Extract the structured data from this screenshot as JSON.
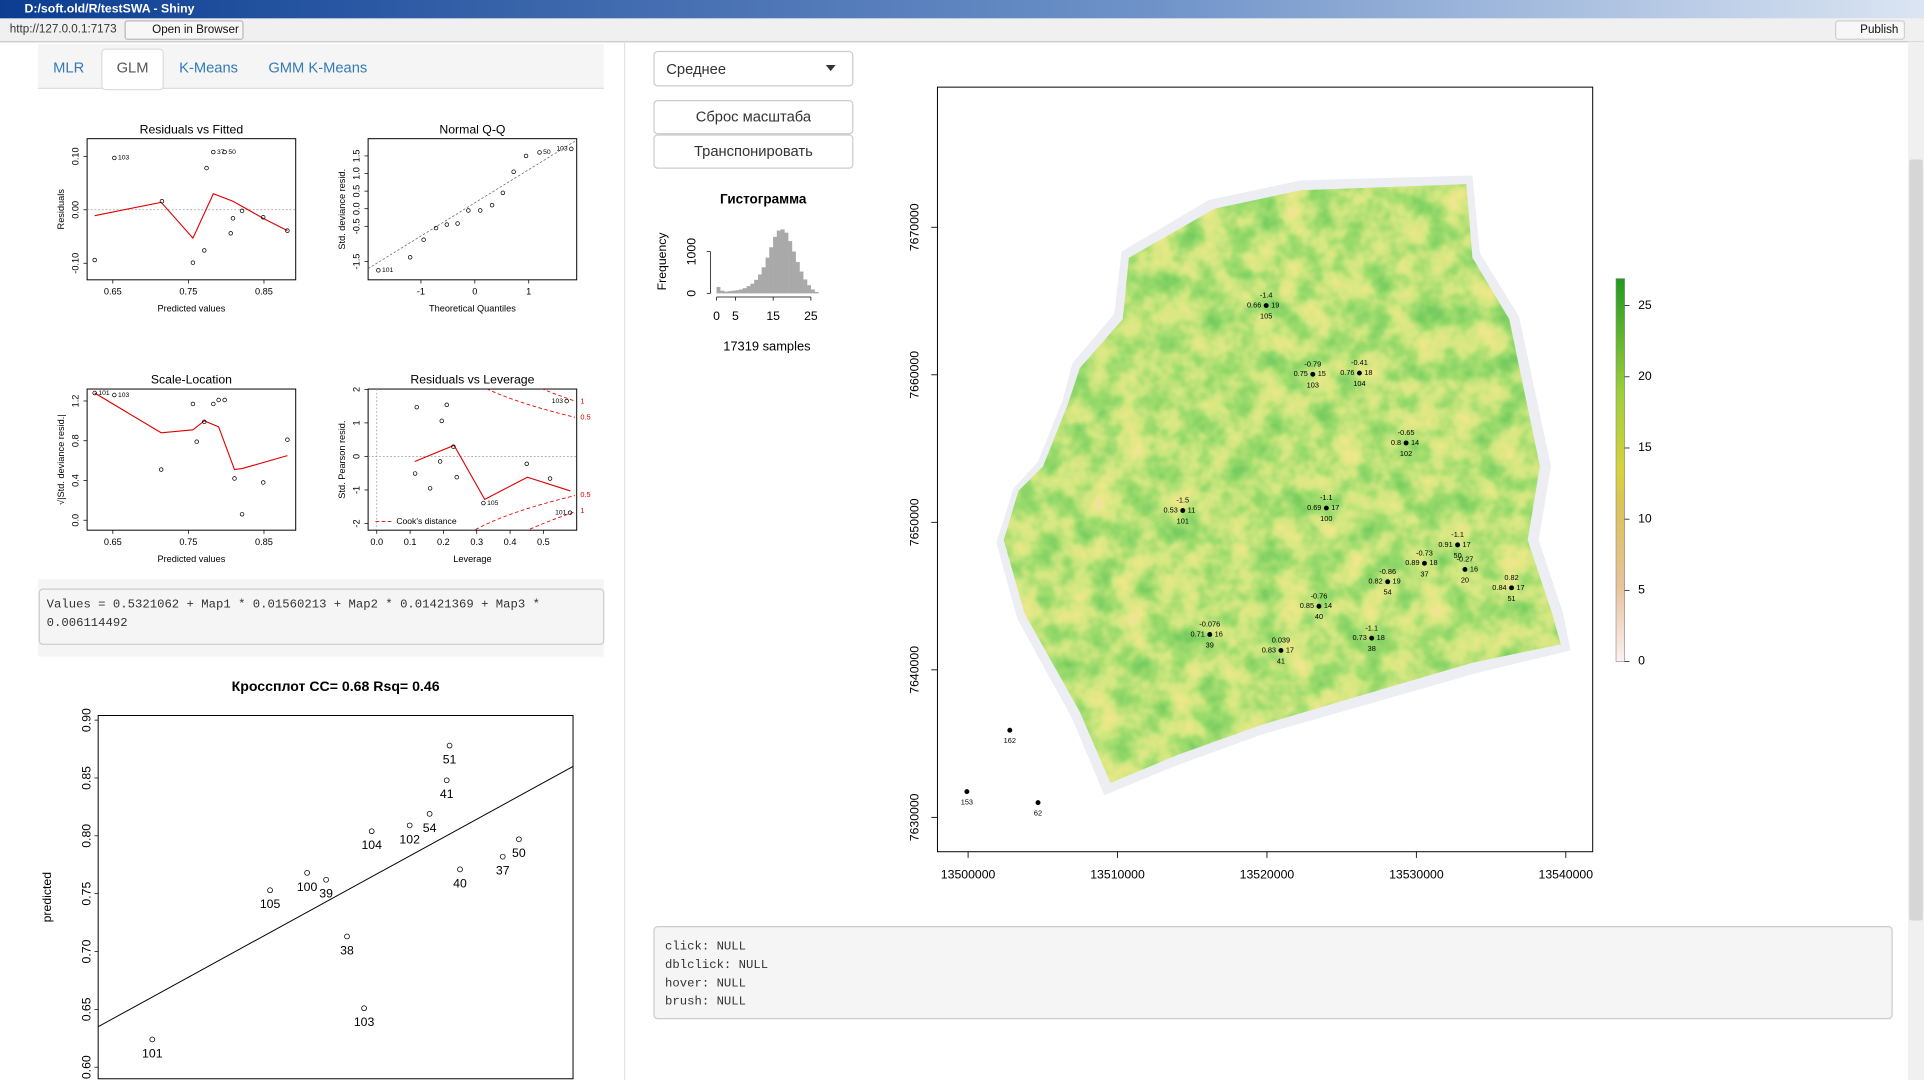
{
  "window": {
    "title": "D:/soft.old/R/testSWA - Shiny",
    "url": "http://127.0.0.1:7173",
    "open_in_browser": "Open in Browser",
    "publish": "Publish"
  },
  "tabs": {
    "items": [
      "MLR",
      "GLM",
      "K-Means",
      "GMM K-Means"
    ],
    "active": 1
  },
  "diagnostics": [
    {
      "title": "Residuals vs Fitted",
      "xlabel": "Predicted values",
      "ylabel": "Residuals",
      "xlim": [
        0.616,
        0.892
      ],
      "ylim": [
        -0.131,
        0.133
      ],
      "xticks": [
        0.65,
        0.75,
        0.85
      ],
      "yticks": [
        {
          "value": -0.1,
          "label": "-0.10"
        },
        {
          "value": 0,
          "label": "0.00"
        },
        {
          "value": 0.1,
          "label": "0.10"
        }
      ],
      "zero_line": true,
      "points": [
        {
          "x": 0.626,
          "y": -0.094
        },
        {
          "x": 0.652,
          "y": 0.097,
          "label": "103"
        },
        {
          "x": 0.715,
          "y": 0.016
        },
        {
          "x": 0.756,
          "y": -0.099
        },
        {
          "x": 0.771,
          "y": -0.076
        },
        {
          "x": 0.774,
          "y": 0.078
        },
        {
          "x": 0.783,
          "y": 0.108,
          "label": "37"
        },
        {
          "x": 0.798,
          "y": 0.108,
          "label": "50"
        },
        {
          "x": 0.806,
          "y": -0.044
        },
        {
          "x": 0.809,
          "y": -0.016
        },
        {
          "x": 0.821,
          "y": -0.002
        },
        {
          "x": 0.849,
          "y": -0.014
        },
        {
          "x": 0.881,
          "y": -0.039
        }
      ],
      "smooth": {
        "x": [
          0.626,
          0.714,
          0.756,
          0.783,
          0.809,
          0.849,
          0.881
        ],
        "y": [
          -0.011,
          0.014,
          -0.053,
          0.03,
          0.016,
          -0.016,
          -0.039
        ]
      }
    },
    {
      "title": "Normal Q-Q",
      "xlabel": "Theoretical Quantiles",
      "ylabel": "Std. deviance resid.",
      "xlim": [
        -1.98,
        1.89
      ],
      "ylim": [
        -2.02,
        1.99
      ],
      "xticks": [
        -1,
        0,
        1
      ],
      "yticks": [
        -1.5,
        -0.5,
        {
          "value": 0,
          "label": "0.0"
        },
        0.5,
        {
          "value": 1,
          "label": "1.0"
        },
        1.5
      ],
      "points": [
        {
          "x": -1.79,
          "y": -1.75,
          "label": "101"
        },
        {
          "x": -1.2,
          "y": -1.38
        },
        {
          "x": -0.95,
          "y": -0.88
        },
        {
          "x": -0.72,
          "y": -0.55
        },
        {
          "x": -0.52,
          "y": -0.45
        },
        {
          "x": -0.32,
          "y": -0.42
        },
        {
          "x": -0.12,
          "y": -0.05
        },
        {
          "x": 0.1,
          "y": -0.05
        },
        {
          "x": 0.32,
          "y": 0.1
        },
        {
          "x": 0.52,
          "y": 0.45
        },
        {
          "x": 0.72,
          "y": 1.05
        },
        {
          "x": 0.95,
          "y": 1.5
        },
        {
          "x": 1.2,
          "y": 1.6,
          "label": "50"
        },
        {
          "x": 1.79,
          "y": 1.7,
          "label": "103"
        }
      ],
      "ref_line": {
        "x": [
          -1.98,
          1.89
        ],
        "y": [
          -1.7,
          1.95
        ]
      }
    },
    {
      "title": "Scale-Location",
      "xlabel": "Predicted values",
      "ylabel": "√|Std. deviance resid.|",
      "xlim": [
        0.616,
        0.892
      ],
      "ylim": [
        -0.1,
        1.32
      ],
      "xticks": [
        0.65,
        0.75,
        0.85
      ],
      "yticks": [
        {
          "value": 0,
          "label": "0.0"
        },
        0.4,
        0.8,
        1.2
      ],
      "points": [
        {
          "x": 0.626,
          "y": 1.28,
          "label": "101"
        },
        {
          "x": 0.652,
          "y": 1.26,
          "label": "103"
        },
        {
          "x": 0.714,
          "y": 0.51
        },
        {
          "x": 0.756,
          "y": 1.17
        },
        {
          "x": 0.761,
          "y": 0.79
        },
        {
          "x": 0.771,
          "y": 0.99
        },
        {
          "x": 0.783,
          "y": 1.17
        },
        {
          "x": 0.79,
          "y": 1.21
        },
        {
          "x": 0.798,
          "y": 1.21
        },
        {
          "x": 0.811,
          "y": 0.42
        },
        {
          "x": 0.821,
          "y": 0.06
        },
        {
          "x": 0.849,
          "y": 0.38
        },
        {
          "x": 0.881,
          "y": 0.81
        }
      ],
      "smooth": {
        "x": [
          0.626,
          0.714,
          0.756,
          0.771,
          0.79,
          0.811,
          0.821,
          0.881
        ],
        "y": [
          1.28,
          0.88,
          0.91,
          1.0,
          0.94,
          0.51,
          0.52,
          0.65
        ]
      }
    },
    {
      "title": "Residuals vs Leverage",
      "xlabel": "Leverage",
      "ylabel": "Std. Pearson resid.",
      "xlim": [
        -0.026,
        0.6
      ],
      "ylim": [
        -2.2,
        2.01
      ],
      "xticks": [
        {
          "value": 0,
          "label": "0.0"
        },
        0.1,
        0.2,
        0.3,
        0.4,
        0.5
      ],
      "yticks": [
        -2,
        -1,
        0,
        1,
        2
      ],
      "zero_line": true,
      "points": [
        {
          "x": 0.12,
          "y": 1.47
        },
        {
          "x": 0.195,
          "y": 1.06
        },
        {
          "x": 0.21,
          "y": 1.54
        },
        {
          "x": 0.115,
          "y": -0.51
        },
        {
          "x": 0.16,
          "y": -0.95
        },
        {
          "x": 0.19,
          "y": -0.15
        },
        {
          "x": 0.23,
          "y": 0.29
        },
        {
          "x": 0.24,
          "y": -0.62
        },
        {
          "x": 0.32,
          "y": -1.39,
          "label": "105"
        },
        {
          "x": 0.45,
          "y": -0.22
        },
        {
          "x": 0.52,
          "y": -0.66
        },
        {
          "x": 0.58,
          "y": -1.68,
          "label": "101"
        },
        {
          "x": 0.57,
          "y": 1.65,
          "label": "103"
        }
      ],
      "smooth": {
        "x": [
          0.114,
          0.232,
          0.324,
          0.452,
          0.581
        ],
        "y": [
          -0.15,
          0.33,
          -1.28,
          -0.62,
          -1.03
        ]
      },
      "cook_levels": [
        {
          "value": 0.5,
          "label": "0.5"
        },
        {
          "value": 1,
          "label": "1"
        }
      ],
      "cook_legend": "Cook's distance"
    }
  ],
  "formula": "Values = 0.5321062 + Map1 * 0.01560213 + Map2 * 0.01421369 + Map3 * 0.006114492",
  "crossplot": {
    "title": "Кроссплот CC= 0.68 Rsq= 0.46",
    "ylabel": "predicted",
    "xlim": [
      0.5,
      1.0
    ],
    "ylim": [
      0.59,
      0.904
    ],
    "yticks": [
      {
        "value": 0.6,
        "label": "0.60"
      },
      0.65,
      {
        "value": 0.7,
        "label": "0.70"
      },
      0.75,
      {
        "value": 0.8,
        "label": "0.80"
      },
      0.85,
      {
        "value": 0.9,
        "label": "0.90"
      }
    ],
    "points": [
      {
        "x": 0.557,
        "y": 0.624,
        "label": "101"
      },
      {
        "x": 0.78,
        "y": 0.651,
        "label": "103"
      },
      {
        "x": 0.762,
        "y": 0.713,
        "label": "38"
      },
      {
        "x": 0.681,
        "y": 0.753,
        "label": "105"
      },
      {
        "x": 0.72,
        "y": 0.768,
        "label": "100"
      },
      {
        "x": 0.74,
        "y": 0.762,
        "label": "39"
      },
      {
        "x": 0.788,
        "y": 0.804,
        "label": "104"
      },
      {
        "x": 0.828,
        "y": 0.809,
        "label": "102"
      },
      {
        "x": 0.849,
        "y": 0.819,
        "label": "54"
      },
      {
        "x": 0.867,
        "y": 0.848,
        "label": "41"
      },
      {
        "x": 0.87,
        "y": 0.878,
        "label": "51"
      },
      {
        "x": 0.926,
        "y": 0.782,
        "label": "37"
      },
      {
        "x": 0.943,
        "y": 0.797,
        "label": "50"
      },
      {
        "x": 0.881,
        "y": 0.771,
        "label": "40"
      }
    ],
    "fit_line": {
      "x": [
        0.5,
        1.0
      ],
      "y": [
        0.635,
        0.86
      ]
    }
  },
  "controls": {
    "select": "Среднее",
    "reset_button": "Сброс масштаба",
    "transpose_button": "Транспонировать"
  },
  "histogram": {
    "title": "Гистограмма",
    "ylabel": "Frequency",
    "note": "17319 samples",
    "bins": [
      0,
      1,
      2,
      3,
      4,
      5,
      6,
      7,
      8,
      9,
      10,
      11,
      12,
      13,
      14,
      15,
      16,
      17,
      18,
      19,
      20,
      21,
      22,
      23,
      24,
      25,
      26,
      27
    ],
    "counts": [
      150,
      60,
      40,
      50,
      60,
      70,
      90,
      120,
      170,
      230,
      320,
      450,
      620,
      850,
      1100,
      1350,
      1500,
      1530,
      1450,
      1250,
      1000,
      750,
      520,
      330,
      190,
      90,
      30
    ],
    "color": "#a9a9a9",
    "xlim": [
      0,
      27
    ],
    "ylim": [
      0,
      1530
    ],
    "xticks": [
      0,
      5,
      15,
      25
    ],
    "yticks": [
      0,
      1000
    ]
  },
  "map": {
    "xlim": [
      13497950,
      13541800
    ],
    "ylim": [
      7627670,
      7679500
    ],
    "xticks": [
      13500000,
      13510000,
      13520000,
      13530000,
      13540000
    ],
    "yticks": [
      7630000,
      7640000,
      7650000,
      7660000,
      7670000
    ],
    "legend": {
      "lim": [
        0,
        26.9
      ],
      "ticks": [
        0,
        5,
        10,
        15,
        20,
        25
      ]
    },
    "points": [
      {
        "x": 13519950,
        "y": 7664694,
        "id": "105",
        "top": "-1.4",
        "left": "0.66",
        "right": "19"
      },
      {
        "x": 13523070,
        "y": 7660035,
        "id": "103",
        "top": "-0.79",
        "left": "0.75",
        "right": "15"
      },
      {
        "x": 13526190,
        "y": 7660118,
        "id": "104",
        "top": "-0.41",
        "left": "0.76",
        "right": "18"
      },
      {
        "x": 13529310,
        "y": 7655376,
        "id": "102",
        "top": "-0.65",
        "left": "0.8",
        "right": "14"
      },
      {
        "x": 13514368,
        "y": 7650800,
        "id": "101",
        "top": "-1.5",
        "left": "0.53",
        "right": "11"
      },
      {
        "x": 13523973,
        "y": 7650966,
        "id": "100",
        "top": "-1.1",
        "left": "0.69",
        "right": "17"
      },
      {
        "x": 13532758,
        "y": 7648470,
        "id": "50",
        "top": "-1.1",
        "left": "0.91",
        "right": "17"
      },
      {
        "x": 13530541,
        "y": 7647222,
        "id": "37",
        "top": "-0.73",
        "left": "0.89",
        "right": "18"
      },
      {
        "x": 13533250,
        "y": 7646806,
        "id": "20",
        "top": "-0.27",
        "right": "16"
      },
      {
        "x": 13528078,
        "y": 7645974,
        "id": "54",
        "top": "-0.86",
        "left": "0.82",
        "right": "19"
      },
      {
        "x": 13536370,
        "y": 7645558,
        "id": "51",
        "top": "0.82",
        "left": "0.84",
        "right": "17"
      },
      {
        "x": 13523481,
        "y": 7644310,
        "id": "40",
        "top": "-0.76",
        "left": "0.85",
        "right": "14"
      },
      {
        "x": 13516174,
        "y": 7642397,
        "id": "39",
        "top": "-0.076",
        "left": "0.71",
        "right": "16"
      },
      {
        "x": 13520936,
        "y": 7641315,
        "id": "41",
        "top": "0.039",
        "left": "0.83",
        "right": "17"
      },
      {
        "x": 13527011,
        "y": 7642147,
        "id": "38",
        "top": "-1.1",
        "left": "0.73",
        "right": "18"
      },
      {
        "x": 13502791,
        "y": 7635907,
        "id": "162"
      },
      {
        "x": 13499918,
        "y": 7631747,
        "id": "153"
      },
      {
        "x": 13504680,
        "y": 7630998,
        "id": "62"
      }
    ]
  },
  "info": [
    "click: NULL",
    "dblclick: NULL",
    "hover: NULL",
    "brush: NULL"
  ]
}
